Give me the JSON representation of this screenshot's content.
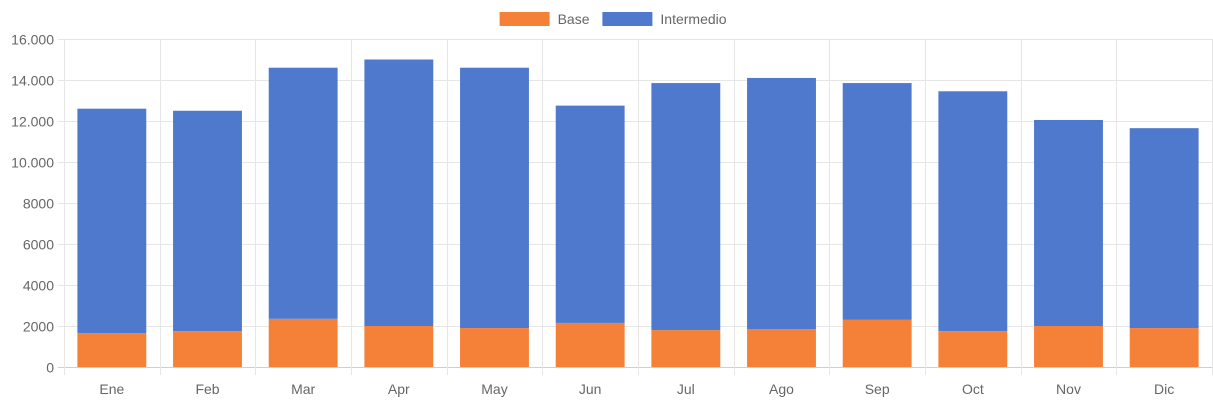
{
  "chart_data": {
    "type": "bar",
    "stacked": true,
    "categories": [
      "Ene",
      "Feb",
      "Mar",
      "Apr",
      "May",
      "Jun",
      "Jul",
      "Ago",
      "Sep",
      "Oct",
      "Nov",
      "Dic"
    ],
    "series": [
      {
        "name": "Base",
        "color": "#f58138",
        "values": [
          1650,
          1750,
          2350,
          2000,
          1900,
          2150,
          1800,
          1850,
          2300,
          1750,
          2000,
          1900
        ]
      },
      {
        "name": "Intermedio",
        "color": "#4e79cc",
        "values": [
          10950,
          10750,
          12250,
          13000,
          12700,
          10600,
          12050,
          12250,
          11550,
          11700,
          10050,
          9750
        ]
      }
    ],
    "ylim": [
      0,
      16000
    ],
    "yticks": [
      0,
      2000,
      4000,
      6000,
      8000,
      10000,
      12000,
      14000,
      16000
    ],
    "ytick_labels": [
      "0",
      "2000",
      "4000",
      "6000",
      "8000",
      "10.000",
      "12.000",
      "14.000",
      "16.000"
    ],
    "grid": true,
    "legend_position": "top-center"
  }
}
